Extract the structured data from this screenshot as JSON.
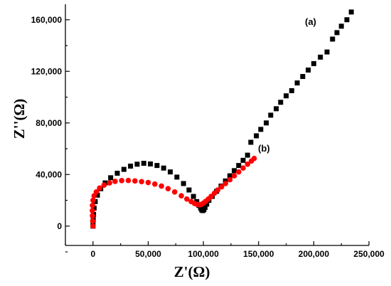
{
  "chart_data": {
    "type": "scatter",
    "title": "",
    "xlabel": "Z'(Ω)",
    "ylabel": "Z''(Ω)",
    "xlim": [
      -25000,
      250000
    ],
    "ylim": [
      -15000,
      172000
    ],
    "xticks": [
      0,
      50000,
      100000,
      150000,
      200000,
      250000
    ],
    "xtick_labels": [
      "0",
      "50,000",
      "100,000",
      "150,000",
      "200,000",
      "250,000"
    ],
    "yticks": [
      0,
      40000,
      80000,
      120000,
      160000
    ],
    "ytick_labels": [
      "0",
      "40,000",
      "80,000",
      "120,000",
      "160,000"
    ],
    "grid": false,
    "legend": "none",
    "series": [
      {
        "name": "(a)",
        "marker": "square",
        "color": "#000000",
        "x": [
          0,
          0,
          200,
          500,
          1000,
          2000,
          4000,
          7000,
          11000,
          16000,
          22000,
          28000,
          34000,
          40000,
          46000,
          52000,
          58000,
          64000,
          70000,
          76000,
          82000,
          87000,
          91000,
          94000,
          96000,
          97500,
          98500,
          99500,
          100500,
          101500,
          103000,
          105000,
          108000,
          112000,
          116000,
          120000,
          124000,
          128000,
          132000,
          136000,
          140000,
          143000,
          148000,
          152000,
          157000,
          161000,
          166000,
          170000,
          175000,
          180000,
          185000,
          190000,
          195000,
          200000,
          206000,
          212000,
          217000,
          221000,
          225000,
          230000,
          234000
        ],
        "y": [
          0,
          2000,
          5000,
          9000,
          14000,
          19000,
          24000,
          29000,
          33500,
          37500,
          41000,
          44000,
          46500,
          48000,
          48700,
          48200,
          47000,
          45000,
          42000,
          38000,
          33000,
          28000,
          23000,
          19000,
          16000,
          14000,
          12500,
          12000,
          12800,
          14500,
          17000,
          20000,
          23000,
          27000,
          31000,
          35000,
          39000,
          43000,
          47000,
          51000,
          55000,
          65000,
          70000,
          75000,
          80000,
          86000,
          91000,
          96000,
          101000,
          105000,
          111000,
          116000,
          121000,
          126000,
          131000,
          135000,
          145000,
          150000,
          155000,
          160000,
          166000
        ]
      },
      {
        "name": "(b)",
        "marker": "circle",
        "color": "#ff0000",
        "x": [
          0,
          -300,
          -500,
          -600,
          -500,
          0,
          1000,
          3000,
          6000,
          10000,
          15000,
          20000,
          26000,
          32000,
          38000,
          44000,
          50000,
          56000,
          62000,
          68000,
          74000,
          80000,
          85000,
          89000,
          92000,
          94500,
          96500,
          98000,
          100000,
          102000,
          104500,
          107000,
          110000,
          113000,
          116500,
          120000,
          124000,
          128000,
          132000,
          136000,
          140000,
          143500,
          146000
        ],
        "y": [
          0,
          4000,
          8000,
          12000,
          16000,
          20000,
          23500,
          26500,
          29500,
          31800,
          33500,
          34700,
          35300,
          35400,
          35000,
          34500,
          33800,
          32600,
          31000,
          29000,
          26500,
          23500,
          21000,
          19000,
          17500,
          16800,
          16500,
          16800,
          17800,
          19200,
          21000,
          23000,
          25500,
          28000,
          30500,
          33000,
          36000,
          39000,
          42000,
          45000,
          48000,
          50500,
          52500
        ]
      }
    ],
    "annotations": [
      {
        "text": "(a)",
        "x": 205000,
        "y": 165000
      },
      {
        "text": "(b)",
        "x": 155000,
        "y": 54000
      }
    ]
  }
}
